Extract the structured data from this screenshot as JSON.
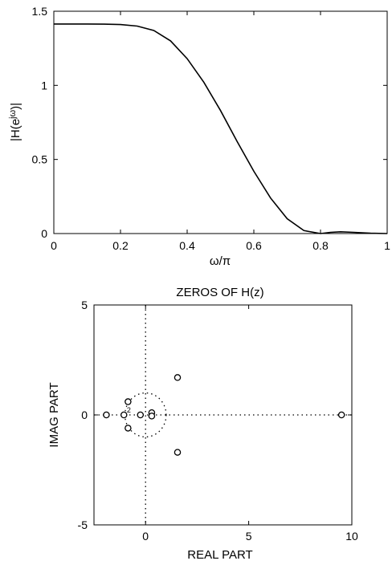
{
  "colors": {
    "line": "#000000",
    "background": "#ffffff"
  },
  "chart_data": [
    {
      "type": "line",
      "title": "",
      "xlabel": "ω/π",
      "ylabel": "|H(e",
      "ylabel_sup": "jω",
      "ylabel_close": ")|",
      "xlim": [
        0,
        1
      ],
      "ylim": [
        0,
        1.5
      ],
      "xticks": [
        0,
        0.2,
        0.4,
        0.6,
        0.8,
        1
      ],
      "xtick_labels": [
        "0",
        "0.2",
        "0.4",
        "0.6",
        "0.8",
        "1"
      ],
      "yticks": [
        0,
        0.5,
        1,
        1.5
      ],
      "ytick_labels": [
        "0",
        "0.5",
        "1",
        "1.5"
      ],
      "grid": false,
      "series": [
        {
          "x": [
            0,
            0.05,
            0.1,
            0.15,
            0.2,
            0.25,
            0.3,
            0.35,
            0.4,
            0.45,
            0.5,
            0.55,
            0.6,
            0.65,
            0.7,
            0.75,
            0.8,
            0.83,
            0.86,
            0.9,
            0.95,
            1.0
          ],
          "y": [
            1.414,
            1.414,
            1.414,
            1.413,
            1.41,
            1.4,
            1.37,
            1.3,
            1.18,
            1.02,
            0.83,
            0.62,
            0.42,
            0.24,
            0.1,
            0.02,
            0.0,
            0.008,
            0.012,
            0.008,
            0.002,
            0.0
          ]
        }
      ]
    },
    {
      "type": "scatter",
      "title": "ZEROS OF H(z)",
      "xlabel": "REAL PART",
      "ylabel": "IMAG PART",
      "xlim": [
        -2.5,
        10
      ],
      "ylim": [
        -5,
        5
      ],
      "xticks": [
        0,
        5,
        10
      ],
      "xtick_labels": [
        "0",
        "5",
        "10"
      ],
      "yticks": [
        -5,
        0,
        5
      ],
      "ytick_labels": [
        "-5",
        "0",
        "5"
      ],
      "grid": false,
      "unit_circle": true,
      "reference_lines": [
        "x=0",
        "y=0"
      ],
      "marker": "circle",
      "multiplicity_label": "2",
      "points": [
        {
          "x": -1.9,
          "y": 0
        },
        {
          "x": -1.05,
          "y": 0
        },
        {
          "x": -0.85,
          "y": 0.6
        },
        {
          "x": -0.85,
          "y": -0.6
        },
        {
          "x": -0.25,
          "y": 0
        },
        {
          "x": 0.3,
          "y": 0.1
        },
        {
          "x": 0.3,
          "y": -0.05
        },
        {
          "x": 1.55,
          "y": 1.7
        },
        {
          "x": 1.55,
          "y": -1.7
        },
        {
          "x": 9.5,
          "y": 0
        }
      ]
    }
  ]
}
